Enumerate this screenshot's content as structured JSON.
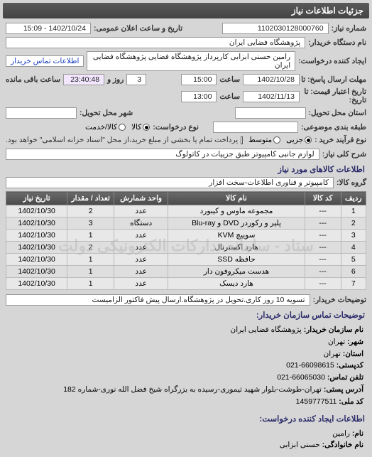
{
  "header": {
    "title": "جزئیات اطلاعات نیاز"
  },
  "fields": {
    "request_no_label": "شماره نیاز:",
    "request_no": "1102030128000760",
    "announce_label": "تاریخ و ساعت اعلان عمومی:",
    "announce_value": "1402/10/24 - 15:09",
    "buyer_org_label": "نام دستگاه خریدار:",
    "buyer_org": "پژوهشگاه فضایی ایران",
    "requester_label": "ایجاد کننده درخواست:",
    "requester": "رامین حسنی ابزابی کارپرداز پژوهشگاه فضایی پژوهشگاه فضایی ایران",
    "contact_link": "اطلاعات تماس خریدار",
    "deadline_label": "مهلت ارسال پاسخ: تا",
    "deadline_date": "1402/10/28",
    "time_label": "ساعت",
    "deadline_time": "15:00",
    "remaining_days": "3",
    "remaining_days_label": "روز و",
    "remaining_time": "23:40:48",
    "remaining_suffix": "ساعت باقی مانده",
    "valid_label": "تاریخ اعتبار\nقیمت: تا تاریخ:",
    "valid_date": "1402/11/13",
    "valid_time": "13:00",
    "province_label": "استان محل تحویل:",
    "city_label": "شهر محل تحویل:",
    "category_label": "طبقه بندی موضوعی:",
    "type_label": "نوع درخواست:",
    "type_goods": "کالا",
    "type_service": "کالا/خدمت",
    "process_label": "نوع فرآیند خرید :",
    "process_low": "جزیی",
    "process_mid": "متوسط",
    "process_note": "پرداخت تمام یا بخشی از مبلغ خرید،از محل \"اسناد خزانه اسلامی\" خواهد بود.",
    "need_desc_label": "شرح کلی نیاز:",
    "need_desc": "لوازم جانبی کامپیوتر طبق جزییات در کاتولوگ",
    "goods_section": "اطلاعات کالاهای مورد نیاز",
    "goods_group_label": "گروه کالا:",
    "goods_group": "کامپیوتر و فناوری اطلاعات-سخت افزار"
  },
  "table": {
    "columns": [
      "ردیف",
      "کد کالا",
      "نام کالا",
      "واحد شمارش",
      "تعداد / مقدار",
      "تاریخ نیاز"
    ],
    "col_widths": [
      "7%",
      "10%",
      "38%",
      "15%",
      "13%",
      "17%"
    ],
    "rows": [
      [
        "1",
        "---",
        "مجموعه ماوس و کیبورد",
        "عدد",
        "2",
        "1402/10/30"
      ],
      [
        "2",
        "---",
        "پلیر و رکوردر DVD و Blu-ray",
        "دستگاه",
        "3",
        "1402/10/30"
      ],
      [
        "3",
        "---",
        "سوییچ KVM",
        "عدد",
        "1",
        "1402/10/30"
      ],
      [
        "4",
        "---",
        "هارد اکسترنال",
        "عدد",
        "2",
        "1402/10/30"
      ],
      [
        "5",
        "---",
        "حافظه SSD",
        "عدد",
        "1",
        "1402/10/30"
      ],
      [
        "6",
        "---",
        "هدست میکروفون دار",
        "عدد",
        "1",
        "1402/10/30"
      ],
      [
        "7",
        "---",
        "هارد دیسک",
        "عدد",
        "1",
        "1402/10/30"
      ]
    ],
    "watermark": "ستاد - سامانه تدارکات الکترونیکی دولت",
    "header_bg": "#555555",
    "header_fg": "#ffffff"
  },
  "buyer_note": {
    "label": "توضیحات خریدار:",
    "text": "تسویه 10 روز کاری.تحویل در پژوهشگاه.ارسال پیش فاکتور الزامیست"
  },
  "org": {
    "section": "توضیحات تماس سازمان خریدار:",
    "name_k": "نام سازمان خریدار:",
    "name_v": "پژوهشگاه فضایی ایران",
    "city_k": "شهر:",
    "city_v": "تهران",
    "prov_k": "استان:",
    "prov_v": "تهران",
    "post_k": "کدپستی:",
    "post_v": "66098615-021",
    "tel_k": "تلفن تماس:",
    "tel_v": "66065030-021",
    "addr_k": "آدرس پستی:",
    "addr_v": "تهران-طوشت-بلوار شهید تیموری-رسیده به بزرگراه شیخ فضل الله نوری-شماره 182",
    "nid_k": "کد ملی:",
    "nid_v": "1459777511",
    "creator_section": "اطلاعات ایجاد کننده درخواست:",
    "fname_k": "نام:",
    "fname_v": "رامین",
    "lname_k": "نام خانوادگی:",
    "lname_v": "حسنی ابزابی"
  },
  "colors": {
    "page_bg": "#d6d6d6",
    "box_bg": "#ffffff",
    "text": "#222222",
    "section_title": "#2a2a6a"
  }
}
